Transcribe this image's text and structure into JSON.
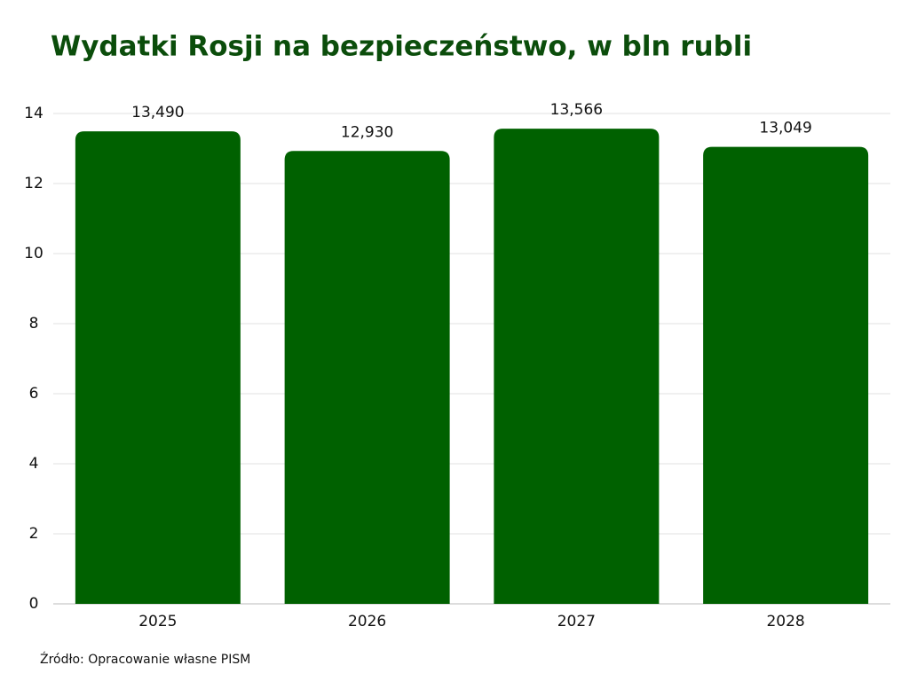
{
  "chart_data": {
    "type": "bar",
    "title": "Wydatki Rosji na bezpieczeństwo, w bln rubli",
    "source": "Źródło: Opracowanie własne PISM",
    "categories": [
      "2025",
      "2026",
      "2027",
      "2028"
    ],
    "values": [
      13.49,
      12.93,
      13.566,
      13.049
    ],
    "value_labels": [
      "13,490",
      "12,930",
      "13,566",
      "13,049"
    ],
    "color": "#006100",
    "ylim": [
      0,
      14
    ],
    "yticks": [
      0,
      2,
      4,
      6,
      8,
      10,
      12,
      14
    ],
    "grid": true
  }
}
